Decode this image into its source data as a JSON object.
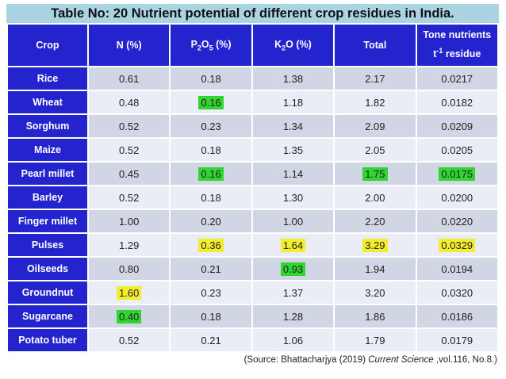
{
  "title": "Table No: 20 Nutrient potential of different crop residues in India.",
  "colors": {
    "title_bg": "#AAD4E2",
    "header_bg": "#2424CE",
    "row_dark": "#D0D6E4",
    "row_light": "#EAEDF5",
    "highlight_green": "#32D432",
    "highlight_yellow": "#F2EE2E"
  },
  "table": {
    "columns": [
      {
        "label": "Crop"
      },
      {
        "label": "N (%)"
      },
      {
        "base1": "P",
        "sub1": "2",
        "base2": "O",
        "sub2": "5",
        "suffix": " (%)"
      },
      {
        "base1": "K",
        "sub1": "2",
        "base2": "O",
        "suffix": " (%)"
      },
      {
        "label": "Total"
      },
      {
        "line1": "Tone nutrients",
        "line2_base": "t",
        "line2_sup": "-1",
        "line2_rest": " residue"
      }
    ],
    "rows": [
      {
        "crop": "Rice",
        "cells": [
          {
            "v": "0.61"
          },
          {
            "v": "0.18"
          },
          {
            "v": "1.38"
          },
          {
            "v": "2.17"
          },
          {
            "v": "0.0217"
          }
        ]
      },
      {
        "crop": "Wheat",
        "cells": [
          {
            "v": "0.48"
          },
          {
            "v": "0.16",
            "hl": "green"
          },
          {
            "v": "1.18"
          },
          {
            "v": "1.82"
          },
          {
            "v": "0.0182"
          }
        ]
      },
      {
        "crop": "Sorghum",
        "cells": [
          {
            "v": "0.52"
          },
          {
            "v": "0.23"
          },
          {
            "v": "1.34"
          },
          {
            "v": "2.09"
          },
          {
            "v": "0.0209"
          }
        ]
      },
      {
        "crop": "Maize",
        "cells": [
          {
            "v": "0.52"
          },
          {
            "v": "0.18"
          },
          {
            "v": "1.35"
          },
          {
            "v": "2.05"
          },
          {
            "v": "0.0205"
          }
        ]
      },
      {
        "crop": "Pearl millet",
        "cells": [
          {
            "v": "0.45"
          },
          {
            "v": "0.16",
            "hl": "green"
          },
          {
            "v": "1.14"
          },
          {
            "v": "1.75",
            "hl": "green"
          },
          {
            "v": "0.0175",
            "hl": "green"
          }
        ]
      },
      {
        "crop": "Barley",
        "cells": [
          {
            "v": "0.52"
          },
          {
            "v": "0.18"
          },
          {
            "v": "1.30"
          },
          {
            "v": "2.00"
          },
          {
            "v": "0.0200"
          }
        ]
      },
      {
        "crop": "Finger millet",
        "cells": [
          {
            "v": "1.00"
          },
          {
            "v": "0.20"
          },
          {
            "v": "1.00"
          },
          {
            "v": "2.20"
          },
          {
            "v": "0.0220"
          }
        ]
      },
      {
        "crop": "Pulses",
        "cells": [
          {
            "v": "1.29"
          },
          {
            "v": "0.36",
            "hl": "yellow"
          },
          {
            "v": "1.64",
            "hl": "yellow"
          },
          {
            "v": "3.29",
            "hl": "yellow"
          },
          {
            "v": "0.0329",
            "hl": "yellow"
          }
        ]
      },
      {
        "crop": "Oilseeds",
        "cells": [
          {
            "v": "0.80"
          },
          {
            "v": "0.21"
          },
          {
            "v": "0.93",
            "hl": "green"
          },
          {
            "v": "1.94"
          },
          {
            "v": "0.0194"
          }
        ]
      },
      {
        "crop": "Groundnut",
        "cells": [
          {
            "v": "1.60",
            "hl": "yellow"
          },
          {
            "v": "0.23"
          },
          {
            "v": "1.37"
          },
          {
            "v": "3.20"
          },
          {
            "v": "0.0320"
          }
        ]
      },
      {
        "crop": "Sugarcane",
        "cells": [
          {
            "v": "0.40",
            "hl": "green"
          },
          {
            "v": "0.18"
          },
          {
            "v": "1.28"
          },
          {
            "v": "1.86"
          },
          {
            "v": "0.0186"
          }
        ]
      },
      {
        "crop": "Potato tuber",
        "cells": [
          {
            "v": "0.52"
          },
          {
            "v": "0.21"
          },
          {
            "v": "1.06"
          },
          {
            "v": "1.79"
          },
          {
            "v": "0.0179"
          }
        ]
      }
    ]
  },
  "chart_data": {
    "type": "table",
    "title": "Table No: 20 Nutrient potential of different crop residues in India.",
    "columns": [
      "Crop",
      "N (%)",
      "P2O5 (%)",
      "K2O (%)",
      "Total",
      "Tone nutrients t-1 residue"
    ],
    "rows": [
      [
        "Rice",
        0.61,
        0.18,
        1.38,
        2.17,
        0.0217
      ],
      [
        "Wheat",
        0.48,
        0.16,
        1.18,
        1.82,
        0.0182
      ],
      [
        "Sorghum",
        0.52,
        0.23,
        1.34,
        2.09,
        0.0209
      ],
      [
        "Maize",
        0.52,
        0.18,
        1.35,
        2.05,
        0.0205
      ],
      [
        "Pearl millet",
        0.45,
        0.16,
        1.14,
        1.75,
        0.0175
      ],
      [
        "Barley",
        0.52,
        0.18,
        1.3,
        2.0,
        0.02
      ],
      [
        "Finger millet",
        1.0,
        0.2,
        1.0,
        2.2,
        0.022
      ],
      [
        "Pulses",
        1.29,
        0.36,
        1.64,
        3.29,
        0.0329
      ],
      [
        "Oilseeds",
        0.8,
        0.21,
        0.93,
        1.94,
        0.0194
      ],
      [
        "Groundnut",
        1.6,
        0.23,
        1.37,
        3.2,
        0.032
      ],
      [
        "Sugarcane",
        0.4,
        0.18,
        1.28,
        1.86,
        0.0186
      ],
      [
        "Potato tuber",
        0.52,
        0.21,
        1.06,
        1.79,
        0.0179
      ]
    ]
  },
  "footer": {
    "prefix": "(Source: Bhattacharjya (2019) ",
    "italic": "Current Science",
    "suffix": " ,vol.116, No.8.)"
  }
}
